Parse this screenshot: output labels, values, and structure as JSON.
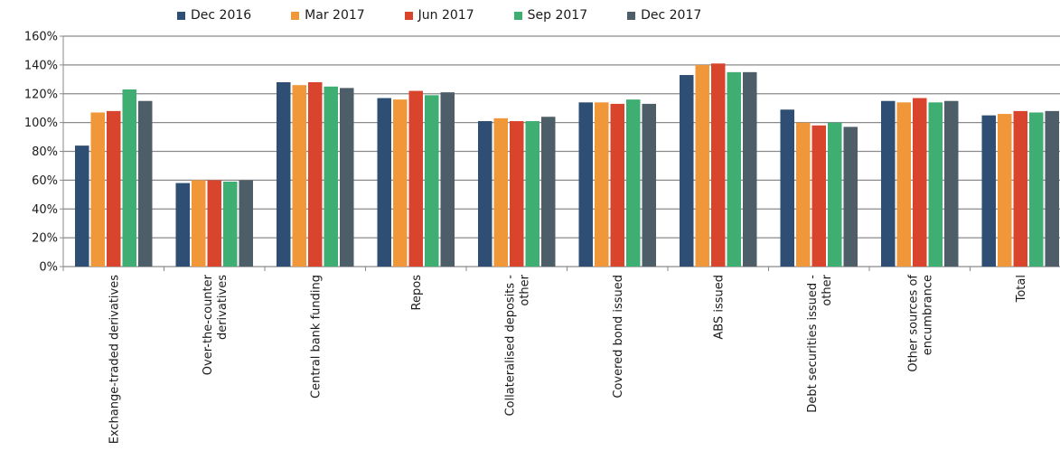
{
  "chart_data": {
    "type": "bar",
    "categories": [
      [
        "Exchange-traded derivatives"
      ],
      [
        "Over-the-counter",
        "derivatives"
      ],
      [
        "Central bank funding"
      ],
      [
        "Repos"
      ],
      [
        "Collateralised deposits -",
        "other"
      ],
      [
        "Covered bond issued"
      ],
      [
        "ABS issued"
      ],
      [
        "Debt securities issued -",
        "other"
      ],
      [
        "Other sources of",
        "encumbrance"
      ],
      [
        "Total"
      ]
    ],
    "series": [
      {
        "name": "Dec 2016",
        "color": "#2e4f73",
        "values": [
          84,
          58,
          128,
          117,
          101,
          114,
          133,
          109,
          115,
          105
        ]
      },
      {
        "name": "Mar 2017",
        "color": "#f0973a",
        "values": [
          107,
          60,
          126,
          116,
          103,
          114,
          140,
          100,
          114,
          106
        ]
      },
      {
        "name": "Jun 2017",
        "color": "#d9452c",
        "values": [
          108,
          60,
          128,
          122,
          101,
          113,
          141,
          98,
          117,
          108
        ]
      },
      {
        "name": "Sep 2017",
        "color": "#3fae73",
        "values": [
          123,
          59,
          125,
          119,
          101,
          116,
          135,
          100,
          114,
          107
        ]
      },
      {
        "name": "Dec 2017",
        "color": "#4d5e68",
        "values": [
          115,
          60,
          124,
          121,
          104,
          113,
          135,
          97,
          115,
          108
        ]
      }
    ],
    "ylim": [
      0,
      160
    ],
    "yticks": [
      "0%",
      "20%",
      "40%",
      "60%",
      "80%",
      "100%",
      "120%",
      "140%",
      "160%"
    ],
    "grid": true,
    "legend_position": "top"
  }
}
